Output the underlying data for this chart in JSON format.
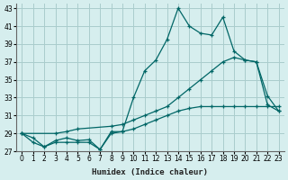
{
  "xlabel": "Humidex (Indice chaleur)",
  "ylabel": "",
  "bg_color": "#d6eeee",
  "grid_color": "#aacccc",
  "line_color": "#006666",
  "xlim": [
    -0.5,
    23.5
  ],
  "ylim": [
    27,
    43.5
  ],
  "xticks": [
    0,
    1,
    2,
    3,
    4,
    5,
    6,
    7,
    8,
    9,
    10,
    11,
    12,
    13,
    14,
    15,
    16,
    17,
    18,
    19,
    20,
    21,
    22,
    23
  ],
  "yticks": [
    27,
    29,
    31,
    33,
    35,
    37,
    39,
    41,
    43
  ],
  "series1_x": [
    0,
    1,
    2,
    3,
    4,
    5,
    6,
    7,
    8,
    9,
    10,
    11,
    12,
    13,
    14,
    15,
    16,
    17,
    18,
    19,
    20,
    21,
    22,
    23
  ],
  "series1_y": [
    29.0,
    28.0,
    27.5,
    28.2,
    28.5,
    28.2,
    28.3,
    27.2,
    29.2,
    29.2,
    33.0,
    36.0,
    37.2,
    39.5,
    43.0,
    41.0,
    40.2,
    40.0,
    42.0,
    38.2,
    37.2,
    37.0,
    33.2,
    31.5
  ],
  "series2_x": [
    0,
    3,
    4,
    5,
    8,
    9,
    10,
    11,
    12,
    13,
    14,
    15,
    16,
    17,
    18,
    19,
    20,
    21,
    22,
    23
  ],
  "series2_y": [
    29.0,
    29.0,
    29.2,
    29.5,
    29.8,
    30.0,
    30.5,
    31.0,
    31.5,
    32.0,
    33.0,
    34.0,
    35.0,
    36.0,
    37.0,
    37.5,
    37.2,
    37.0,
    32.2,
    31.5
  ],
  "series3_x": [
    0,
    1,
    2,
    3,
    4,
    5,
    6,
    7,
    8,
    9,
    10,
    11,
    12,
    13,
    14,
    15,
    16,
    17,
    18,
    19,
    20,
    21,
    22,
    23
  ],
  "series3_y": [
    29.0,
    28.5,
    27.5,
    28.0,
    28.0,
    28.0,
    28.0,
    27.2,
    29.0,
    29.2,
    29.5,
    30.0,
    30.5,
    31.0,
    31.5,
    31.8,
    32.0,
    32.0,
    32.0,
    32.0,
    32.0,
    32.0,
    32.0,
    32.0
  ]
}
